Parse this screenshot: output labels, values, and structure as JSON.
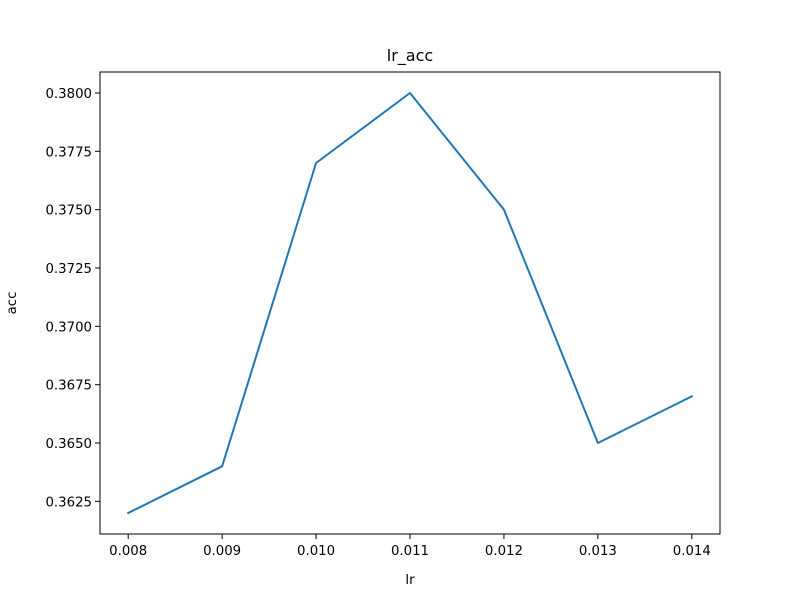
{
  "chart_data": {
    "type": "line",
    "title": "lr_acc",
    "xlabel": "lr",
    "ylabel": "acc",
    "x": [
      0.008,
      0.009,
      0.01,
      0.011,
      0.012,
      0.013,
      0.014
    ],
    "series": [
      {
        "values": [
          0.362,
          0.364,
          0.377,
          0.38,
          0.375,
          0.365,
          0.367
        ],
        "color": "#1f77b4"
      }
    ],
    "xticks": [
      "0.008",
      "0.009",
      "0.010",
      "0.011",
      "0.012",
      "0.013",
      "0.014"
    ],
    "yticks": [
      "0.3625",
      "0.3650",
      "0.3675",
      "0.3700",
      "0.3725",
      "0.3750",
      "0.3775",
      "0.3800"
    ],
    "xlim": [
      0.0077,
      0.0143
    ],
    "ylim": [
      0.3611,
      0.3809
    ],
    "grid": false
  }
}
